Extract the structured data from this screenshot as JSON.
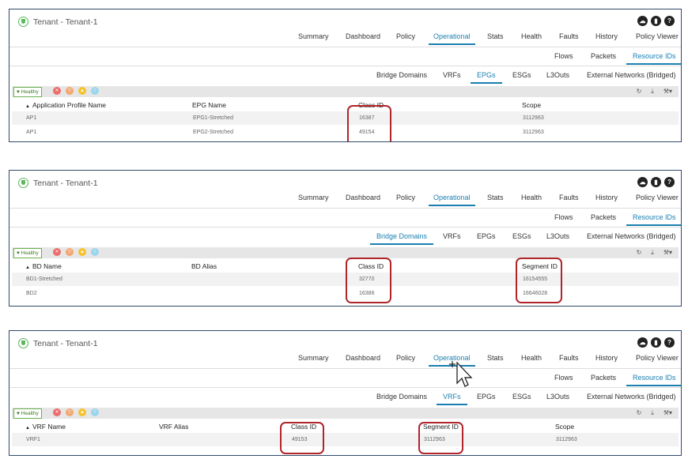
{
  "panels": [
    {
      "title": "Tenant - Tenant-1",
      "main_tabs": [
        "Summary",
        "Dashboard",
        "Policy",
        "Operational",
        "Stats",
        "Health",
        "Faults",
        "History",
        "Policy Viewer"
      ],
      "main_active": "Operational",
      "op_tabs": [
        "Flows",
        "Packets",
        "Resource IDs"
      ],
      "op_active": "Resource IDs",
      "res_tabs": [
        "Bridge Domains",
        "VRFs",
        "EPGs",
        "ESGs",
        "L3Outs",
        "External Networks (Bridged)"
      ],
      "res_active": "EPGs",
      "health_label": "Healthy",
      "columns": [
        "Application Profile Name",
        "EPG Name",
        "Class ID",
        "Scope"
      ],
      "rows": [
        [
          "AP1",
          "EPG1-Stretched",
          "16387",
          "3112963"
        ],
        [
          "AP1",
          "EPG2-Stretched",
          "49154",
          "3112963"
        ]
      ]
    },
    {
      "title": "Tenant - Tenant-1",
      "main_tabs": [
        "Summary",
        "Dashboard",
        "Policy",
        "Operational",
        "Stats",
        "Health",
        "Faults",
        "History",
        "Policy Viewer"
      ],
      "main_active": "Operational",
      "op_tabs": [
        "Flows",
        "Packets",
        "Resource IDs"
      ],
      "op_active": "Resource IDs",
      "res_tabs": [
        "Bridge Domains",
        "VRFs",
        "EPGs",
        "ESGs",
        "L3Outs",
        "External Networks (Bridged)"
      ],
      "res_active": "Bridge Domains",
      "health_label": "Healthy",
      "columns": [
        "BD Name",
        "BD Alias",
        "Class ID",
        "Segment ID"
      ],
      "rows": [
        [
          "BD1-Stretched",
          "",
          "32770",
          "16154555"
        ],
        [
          "BD2",
          "",
          "16386",
          "16646028"
        ]
      ]
    },
    {
      "title": "Tenant - Tenant-1",
      "main_tabs": [
        "Summary",
        "Dashboard",
        "Policy",
        "Operational",
        "Stats",
        "Health",
        "Faults",
        "History",
        "Policy Viewer"
      ],
      "main_active": "Operational",
      "op_tabs": [
        "Flows",
        "Packets",
        "Resource IDs"
      ],
      "op_active": "Resource IDs",
      "res_tabs": [
        "Bridge Domains",
        "VRFs",
        "EPGs",
        "ESGs",
        "L3Outs",
        "External Networks (Bridged)"
      ],
      "res_active": "VRFs",
      "health_label": "Healthy",
      "columns": [
        "VRF Name",
        "VRF Alias",
        "Class ID",
        "Segment ID",
        "Scope"
      ],
      "rows": [
        [
          "VRF1",
          "",
          "49153",
          "3112963",
          "3112963"
        ]
      ]
    }
  ],
  "colors": {
    "accent": "#1a7fb0",
    "highlight": "#b0242a",
    "healthy": "#5cb85c"
  }
}
